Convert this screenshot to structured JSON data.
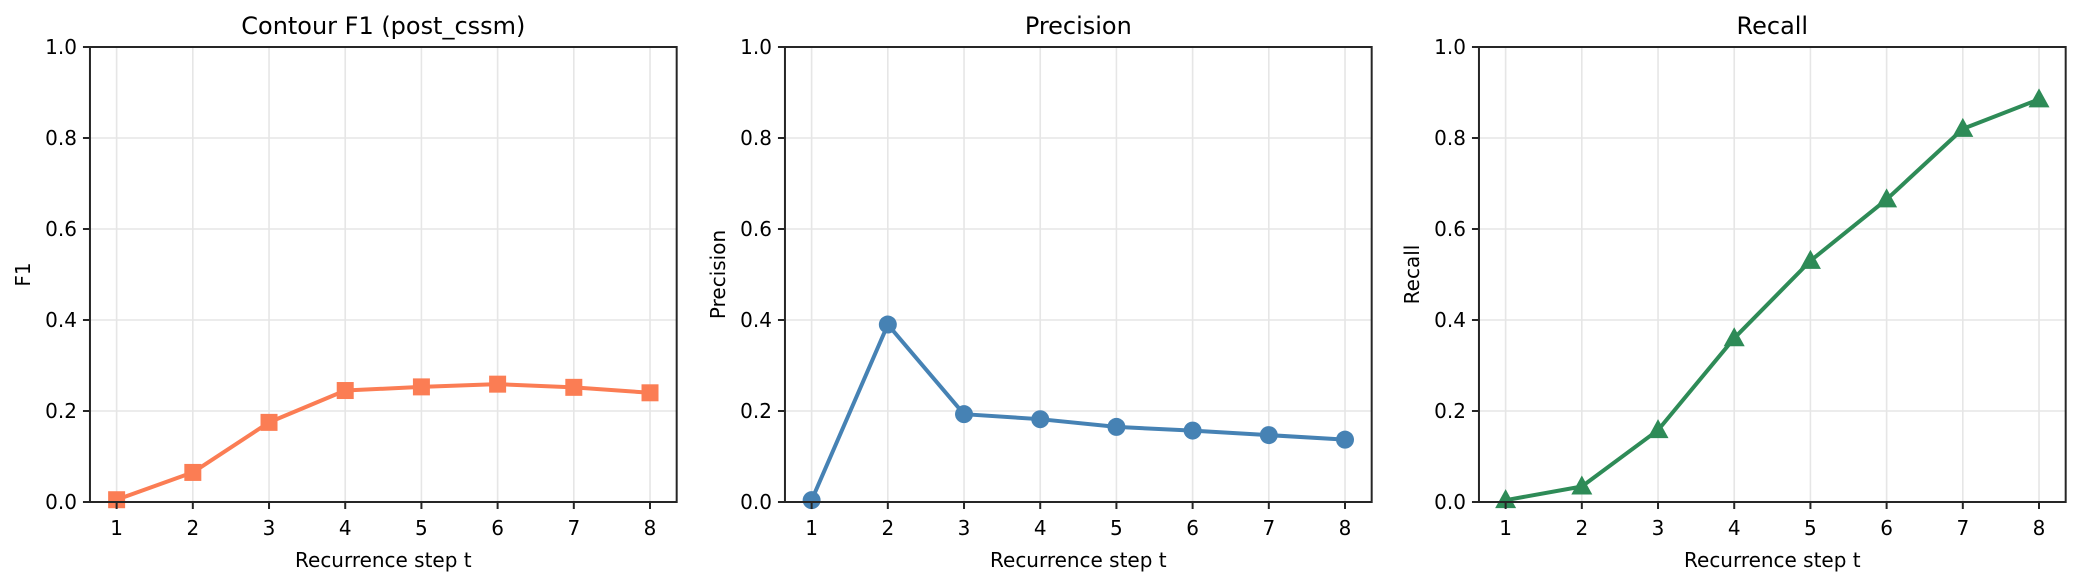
{
  "figure": {
    "background": "#ffffff",
    "grid_color": "#e6e6e6",
    "spine_color": "#262626",
    "text_color": "#000000",
    "grid": true,
    "legend": false
  },
  "chart_data": [
    {
      "type": "line",
      "title": "Contour F1 (post_cssm)",
      "xlabel": "Recurrence step t",
      "ylabel": "F1",
      "x": [
        1,
        2,
        3,
        4,
        5,
        6,
        7,
        8
      ],
      "values": [
        0.005,
        0.065,
        0.175,
        0.245,
        0.253,
        0.259,
        0.252,
        0.24
      ],
      "color": "#fb7d54",
      "marker": "square",
      "xlim": [
        0.65,
        8.35
      ],
      "ylim": [
        0.0,
        1.0
      ],
      "xticks": [
        1,
        2,
        3,
        4,
        5,
        6,
        7,
        8
      ],
      "xtick_labels": [
        "1",
        "2",
        "3",
        "4",
        "5",
        "6",
        "7",
        "8"
      ],
      "yticks": [
        0.0,
        0.2,
        0.4,
        0.6,
        0.8,
        1.0
      ],
      "ytick_labels": [
        "0.0",
        "0.2",
        "0.4",
        "0.6",
        "0.8",
        "1.0"
      ]
    },
    {
      "type": "line",
      "title": "Precision",
      "xlabel": "Recurrence step t",
      "ylabel": "Precision",
      "x": [
        1,
        2,
        3,
        4,
        5,
        6,
        7,
        8
      ],
      "values": [
        0.004,
        0.39,
        0.193,
        0.182,
        0.165,
        0.157,
        0.147,
        0.137
      ],
      "color": "#4682b4",
      "marker": "circle",
      "xlim": [
        0.65,
        8.35
      ],
      "ylim": [
        0.0,
        1.0
      ],
      "xticks": [
        1,
        2,
        3,
        4,
        5,
        6,
        7,
        8
      ],
      "xtick_labels": [
        "1",
        "2",
        "3",
        "4",
        "5",
        "6",
        "7",
        "8"
      ],
      "yticks": [
        0.0,
        0.2,
        0.4,
        0.6,
        0.8,
        1.0
      ],
      "ytick_labels": [
        "0.0",
        "0.2",
        "0.4",
        "0.6",
        "0.8",
        "1.0"
      ]
    },
    {
      "type": "line",
      "title": "Recall",
      "xlabel": "Recurrence step t",
      "ylabel": "Recall",
      "x": [
        1,
        2,
        3,
        4,
        5,
        6,
        7,
        8
      ],
      "values": [
        0.004,
        0.034,
        0.158,
        0.36,
        0.53,
        0.665,
        0.82,
        0.885
      ],
      "color": "#2e8b57",
      "marker": "triangle",
      "xlim": [
        0.65,
        8.35
      ],
      "ylim": [
        0.0,
        1.0
      ],
      "xticks": [
        1,
        2,
        3,
        4,
        5,
        6,
        7,
        8
      ],
      "xtick_labels": [
        "1",
        "2",
        "3",
        "4",
        "5",
        "6",
        "7",
        "8"
      ],
      "yticks": [
        0.0,
        0.2,
        0.4,
        0.6,
        0.8,
        1.0
      ],
      "ytick_labels": [
        "0.0",
        "0.2",
        "0.4",
        "0.6",
        "0.8",
        "1.0"
      ]
    }
  ]
}
